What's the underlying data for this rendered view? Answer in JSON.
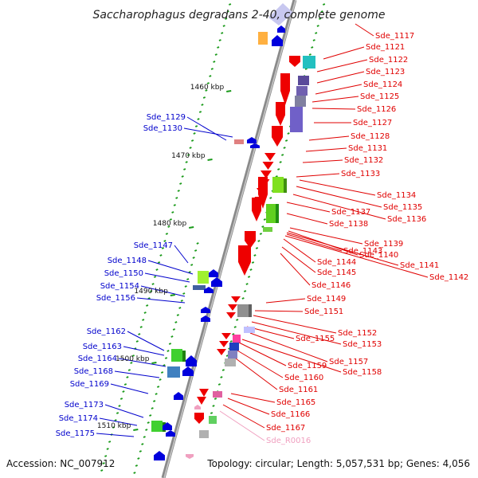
{
  "title": "Saccharophagus degradans 2-40, complete genome",
  "accession": "Accession: NC_007912",
  "topology": "Topology: circular; Length: 5,057,531 bp; Genes: 4,056",
  "kbp_marks": [
    "1460 kbp",
    "1470 kbp",
    "1480 kbp",
    "1490 kbp",
    "1500 kbp",
    "1510 kbp"
  ],
  "colors": {
    "forward_label": "#e00000",
    "reverse_label": "#0000cc",
    "rna_label": "#f0a0c0",
    "backbone": "#909090"
  },
  "left_labels": [
    "Sde_1129",
    "Sde_1130",
    "Sde_1147",
    "Sde_1148",
    "Sde_1150",
    "Sde_1154",
    "Sde_1156",
    "Sde_1162",
    "Sde_1163",
    "Sde_1164",
    "Sde_1168",
    "Sde_1169",
    "Sde_1173",
    "Sde_1174",
    "Sde_1175"
  ],
  "right_labels": [
    "Sde_1117",
    "Sde_1121",
    "Sde_1122",
    "Sde_1123",
    "Sde_1124",
    "Sde_1125",
    "Sde_1126",
    "Sde_1127",
    "Sde_1128",
    "Sde_1131",
    "Sde_1132",
    "Sde_1133",
    "Sde_1134",
    "Sde_1135",
    "Sde_1136",
    "Sde_1137",
    "Sde_1138",
    "Sde_1139",
    "Sde_1140",
    "Sde_1141",
    "Sde_1142",
    "Sde_1143",
    "Sde_1144",
    "Sde_1145",
    "Sde_1146",
    "Sde_1149",
    "Sde_1151",
    "Sde_1152",
    "Sde_1153",
    "Sde_1155",
    "Sde_1157",
    "Sde_1158",
    "Sde_1159",
    "Sde_1160",
    "Sde_1161",
    "Sde_1165",
    "Sde_1166",
    "Sde_1167",
    "Sde_R0016"
  ]
}
